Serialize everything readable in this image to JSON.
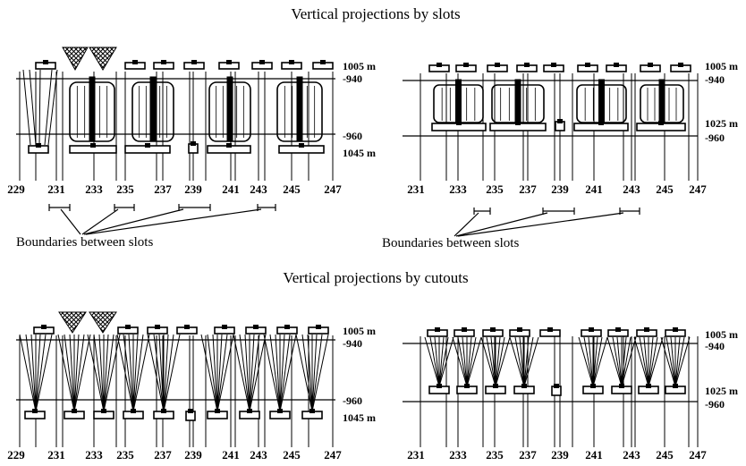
{
  "titles": {
    "slots": "Vertical projections by slots",
    "cutouts": "Vertical projections by cutouts"
  },
  "captions": {
    "boundaries": "Boundaries between slots"
  },
  "levels": {
    "l1005": "1005 m",
    "l940": "-940",
    "l960": "-960",
    "l1045": "1045 m",
    "l1025": "1025 m"
  },
  "ticks_left": [
    "229",
    "231",
    "233",
    "235",
    "237",
    "239",
    "241",
    "243",
    "245",
    "247"
  ],
  "ticks_right": [
    "231",
    "233",
    "235",
    "237",
    "239",
    "241",
    "243",
    "245",
    "247"
  ]
}
